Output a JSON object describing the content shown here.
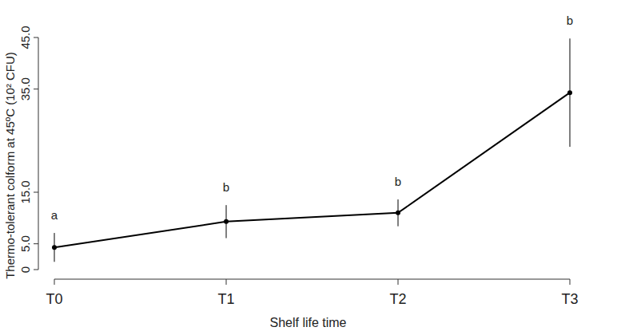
{
  "chart_data": {
    "type": "line",
    "x_label": "Shelf life time",
    "y_label": "Thermo-tolerant colform at 45ºC (10² CFU)",
    "categories": [
      "T0",
      "T1",
      "T2",
      "T3"
    ],
    "values": [
      4.3,
      9.3,
      11.0,
      34.3
    ],
    "errors": [
      2.8,
      3.2,
      2.6,
      10.5
    ],
    "annotations": [
      "a",
      "b",
      "b",
      "b"
    ],
    "color": "#000000",
    "marker": "circle",
    "ylim": [
      0,
      45
    ],
    "yticks": [
      0,
      {
        "value": 5,
        "label": "5.0"
      },
      {
        "value": 15,
        "label": "15.0"
      },
      {
        "value": 35,
        "label": "35.0"
      },
      {
        "value": 45,
        "label": "45.0"
      }
    ],
    "grid": false
  }
}
